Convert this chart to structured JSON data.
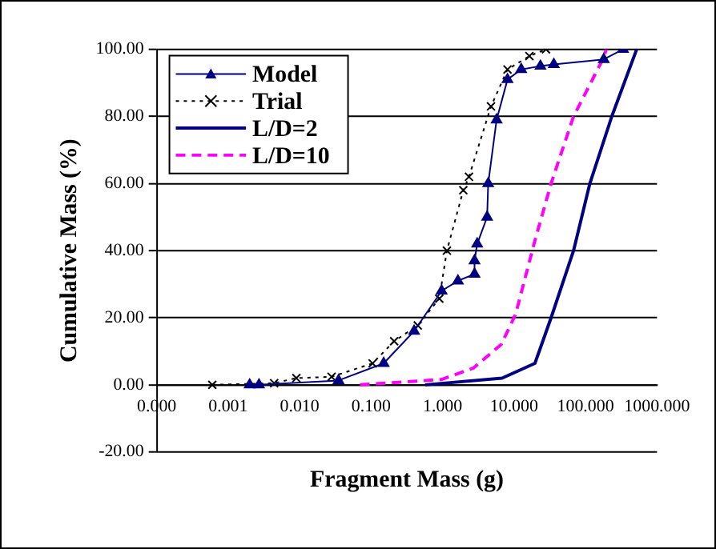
{
  "chart_data": {
    "type": "line",
    "xlabel": "Fragment Mass (g)",
    "ylabel": "Cumulative Mass (%)",
    "log": "x",
    "xlim": [
      0.0001,
      1000
    ],
    "xticks": [
      {
        "value": 0.0001,
        "label": "0.000"
      },
      {
        "value": 0.001,
        "label": "0.001"
      },
      {
        "value": 0.01,
        "label": "0.010"
      },
      {
        "value": 0.1,
        "label": "0.100"
      },
      {
        "value": 1,
        "label": "1.000"
      },
      {
        "value": 10,
        "label": "10.000"
      },
      {
        "value": 100,
        "label": "100.000"
      },
      {
        "value": 1000,
        "label": "1000.000"
      }
    ],
    "ylim": [
      -20,
      100
    ],
    "yticks": [
      {
        "value": -20,
        "label": "-20.00"
      },
      {
        "value": 0,
        "label": "0.00"
      },
      {
        "value": 20,
        "label": "20.00"
      },
      {
        "value": 40,
        "label": "40.00"
      },
      {
        "value": 60,
        "label": "60.00"
      },
      {
        "value": 80,
        "label": "80.00"
      },
      {
        "value": 100,
        "label": "100.00"
      }
    ],
    "grid": "y",
    "legend": "top left",
    "series": [
      {
        "name": "Model",
        "color": "#000080",
        "marker": "triangle",
        "line_style": "solid",
        "x": [
          0.002,
          0.0027,
          0.035,
          0.15,
          0.4,
          0.97,
          1.64,
          2.8,
          2.8,
          3.05,
          4.2,
          4.35,
          5.7,
          8.1,
          12.6,
          23.4,
          36,
          180,
          335
        ],
        "values": [
          0,
          0,
          1.3,
          6.4,
          16,
          28,
          31,
          33,
          37,
          42,
          50,
          60,
          79,
          91,
          94,
          95,
          95.5,
          97,
          100
        ]
      },
      {
        "name": "Trial",
        "color": "#000000",
        "marker": "cross",
        "line_style": "dotted",
        "x": [
          0.0006,
          0.0044,
          0.009,
          0.028,
          0.105,
          0.21,
          0.45,
          0.9,
          1.15,
          1.95,
          2.34,
          4.76,
          8.1,
          16.4,
          28
        ],
        "values": [
          0,
          0.5,
          2,
          2.4,
          6.4,
          13,
          17.7,
          25.7,
          40,
          58,
          62,
          83,
          94,
          98,
          100
        ]
      },
      {
        "name": "L/D=2",
        "color": "#000080",
        "marker": "none",
        "line_style": "solid",
        "x": [
          0.57,
          6.8,
          19.6,
          33,
          68,
          115,
          233,
          520
        ],
        "values": [
          0,
          2,
          6.4,
          20,
          40,
          60,
          80,
          100
        ]
      },
      {
        "name": "L/D=10",
        "color": "#ff00ff",
        "marker": "none",
        "line_style": "dashed",
        "x": [
          0.07,
          0.97,
          2.7,
          6.6,
          10.5,
          19.6,
          33,
          68,
          180,
          195
        ],
        "values": [
          0,
          1.6,
          5,
          12,
          21,
          43,
          60,
          80,
          97.6,
          100
        ]
      }
    ]
  }
}
